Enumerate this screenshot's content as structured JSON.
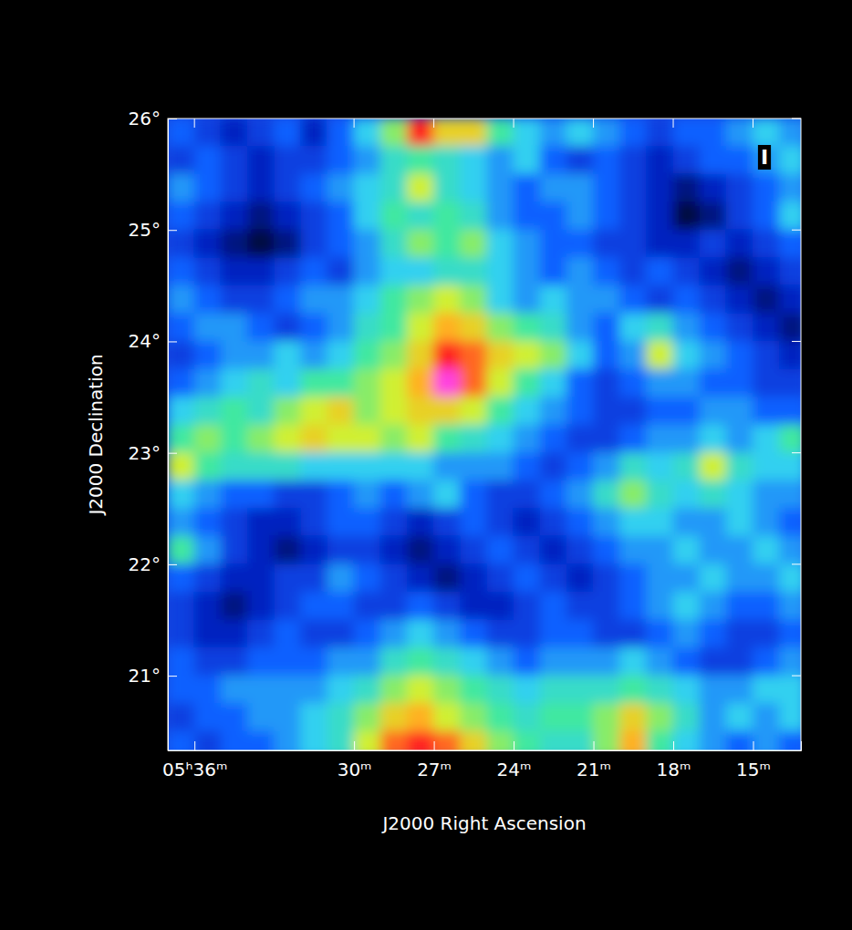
{
  "chart_data": {
    "type": "heatmap",
    "x_label": "J2000 Right Ascension",
    "y_label": "J2000 Declination",
    "annotation": "I",
    "xlim": [
      337.0,
      313.2
    ],
    "ylim": [
      20.33,
      26
    ],
    "xticks": [
      {
        "value": 336,
        "label": "05ʰ36ᵐ"
      },
      {
        "value": 330,
        "label": "30ᵐ"
      },
      {
        "value": 327,
        "label": "27ᵐ"
      },
      {
        "value": 324,
        "label": "24ᵐ"
      },
      {
        "value": 321,
        "label": "21ᵐ"
      },
      {
        "value": 318,
        "label": "18ᵐ"
      },
      {
        "value": 315,
        "label": "15ᵐ"
      }
    ],
    "yticks": [
      {
        "value": 21,
        "label": "21°"
      },
      {
        "value": 22,
        "label": "22°"
      },
      {
        "value": 23,
        "label": "23°"
      },
      {
        "value": 24,
        "label": "24°"
      },
      {
        "value": 25,
        "label": "25°"
      },
      {
        "value": 26,
        "label": "26°"
      }
    ],
    "x": [
      336.5,
      335.5,
      334.5,
      333.5,
      332.5,
      331.5,
      330.5,
      329.5,
      328.5,
      327.5,
      326.5,
      325.5,
      324.5,
      323.5,
      322.5,
      321.5,
      320.5,
      319.5,
      318.5,
      317.5,
      316.5,
      315.5,
      314.5,
      313.5
    ],
    "y": [
      25.875,
      25.625,
      25.375,
      25.125,
      24.875,
      24.625,
      24.375,
      24.125,
      23.875,
      23.625,
      23.375,
      23.125,
      22.875,
      22.625,
      22.375,
      22.125,
      21.875,
      21.625,
      21.375,
      21.125,
      20.875,
      20.625,
      20.375
    ],
    "cells": [
      [
        3.5,
        3,
        2.5,
        3,
        3.5,
        2.5,
        3.5,
        4.5,
        6,
        8.5,
        7,
        7,
        5.5,
        4.5,
        4,
        4.5,
        4,
        3.5,
        3,
        3.5,
        3.5,
        4,
        4.5,
        4
      ],
      [
        3,
        3.5,
        3,
        2.5,
        3,
        3,
        3.5,
        4,
        5,
        5.5,
        5,
        4.5,
        4,
        4.5,
        3.5,
        3,
        3.5,
        3,
        2.5,
        3,
        3.5,
        3.5,
        4,
        4.5
      ],
      [
        4,
        3.5,
        3,
        2.5,
        3,
        3.5,
        4,
        4.5,
        5,
        6.5,
        5,
        4.5,
        4,
        3.5,
        4,
        4,
        3.5,
        3,
        2.5,
        2,
        2.5,
        3,
        3.5,
        4
      ],
      [
        3.5,
        3,
        2.5,
        2,
        2.5,
        3,
        3.5,
        4.5,
        5.5,
        5,
        5.5,
        5,
        4,
        3.5,
        3.5,
        4,
        3.5,
        3,
        2.5,
        1.5,
        2,
        3,
        3.5,
        4.5
      ],
      [
        3,
        2.5,
        2,
        1.5,
        2,
        3,
        3.5,
        4,
        5,
        6,
        5.5,
        6,
        4.5,
        4,
        3.5,
        3.5,
        3,
        3,
        2.5,
        2.5,
        3,
        2.5,
        3,
        3.5
      ],
      [
        3.5,
        3,
        2.5,
        2.5,
        3,
        3.5,
        3,
        4,
        4.5,
        4.5,
        5,
        5,
        4.5,
        4,
        3.5,
        4,
        3.5,
        3,
        3.5,
        3,
        2.5,
        2,
        2.5,
        3
      ],
      [
        4,
        3.5,
        3,
        3,
        3.5,
        4,
        4,
        4.5,
        5.5,
        6,
        6.5,
        6,
        4.5,
        4,
        4.5,
        4,
        4,
        3.5,
        3,
        3.5,
        3,
        2.5,
        2,
        2.5
      ],
      [
        3.5,
        4,
        4,
        3.5,
        3,
        3.5,
        4,
        5,
        5.5,
        6.5,
        7.5,
        7,
        6,
        5.5,
        5,
        4,
        3.5,
        4.5,
        5,
        4,
        3.5,
        3,
        2.5,
        2
      ],
      [
        3,
        3.5,
        4,
        4,
        4.5,
        4,
        4.5,
        5.5,
        6,
        7,
        8.5,
        8,
        7,
        6.5,
        6,
        4.5,
        3.5,
        4,
        6.5,
        4.5,
        4,
        3.5,
        3,
        2.5
      ],
      [
        3.5,
        4,
        4.5,
        5,
        4.5,
        5.5,
        5.5,
        6,
        6.5,
        7.5,
        9.5,
        8,
        6.5,
        5.5,
        4.5,
        3.5,
        3,
        3.5,
        4,
        4,
        3.5,
        3.5,
        3,
        3
      ],
      [
        4.5,
        5,
        5.5,
        5,
        6,
        6.5,
        7,
        6,
        6.5,
        7,
        7,
        6.5,
        5.5,
        4.5,
        4,
        3.5,
        3,
        3,
        3.5,
        3.5,
        4,
        4,
        3.5,
        3.5
      ],
      [
        5.5,
        6,
        5.5,
        6,
        6.5,
        7,
        6.5,
        6.5,
        6,
        6.5,
        5.5,
        5,
        4.5,
        4,
        3.5,
        3,
        3,
        3.5,
        4,
        4,
        4.5,
        4,
        4.5,
        5.5
      ],
      [
        6.5,
        5.5,
        5,
        5,
        5,
        4.5,
        4.5,
        4.5,
        4.5,
        4.5,
        4,
        4,
        4,
        3.5,
        3,
        3.5,
        4,
        5,
        4.5,
        5,
        6.5,
        5,
        4.5,
        4.5
      ],
      [
        4.5,
        4,
        3.5,
        3.5,
        3,
        3,
        3.5,
        4,
        3.5,
        4,
        4.5,
        3.5,
        3,
        3,
        3.5,
        4,
        5,
        6,
        5,
        4.5,
        5,
        4.5,
        4,
        4
      ],
      [
        4,
        3.5,
        3,
        2.5,
        2.5,
        3,
        3.5,
        3.5,
        3,
        2.5,
        3,
        3.5,
        3,
        2.5,
        3,
        3.5,
        4,
        4.5,
        4.5,
        4,
        4,
        4.5,
        4,
        3.5
      ],
      [
        5.5,
        4,
        3,
        2.5,
        2,
        2.5,
        3,
        3,
        2.5,
        2,
        2.5,
        3,
        3.5,
        3,
        2.5,
        3,
        3.5,
        4,
        4,
        4.5,
        4,
        4,
        4.5,
        4
      ],
      [
        3.5,
        3,
        2.5,
        2.5,
        3,
        3,
        4,
        3.5,
        3,
        2.5,
        2,
        2.5,
        3,
        3.5,
        3,
        2.5,
        3,
        3.5,
        4,
        4,
        4.5,
        4,
        4,
        4.5
      ],
      [
        3,
        2.5,
        2,
        2.5,
        3,
        3.5,
        3.5,
        3,
        3,
        3.5,
        3,
        2.5,
        2.5,
        3,
        3.5,
        3,
        3,
        3.5,
        4,
        4.5,
        4,
        3.5,
        3.5,
        4
      ],
      [
        3,
        2.5,
        2.5,
        3,
        3.5,
        3,
        3,
        3.5,
        4,
        4.5,
        4,
        3.5,
        3,
        3,
        3.5,
        3.5,
        3,
        3,
        3.5,
        4,
        3.5,
        3,
        3,
        3.5
      ],
      [
        3.5,
        3,
        3,
        3.5,
        3.5,
        3.5,
        4,
        4,
        5,
        5.5,
        5,
        4.5,
        4,
        3.5,
        4,
        4,
        4,
        4.5,
        4,
        3.5,
        3,
        3,
        3.5,
        4
      ],
      [
        3.5,
        3.5,
        4,
        4,
        4,
        4,
        4.5,
        5,
        6,
        6.5,
        6,
        5.5,
        5,
        4.5,
        5,
        5,
        5,
        5.5,
        5,
        4.5,
        4,
        4,
        4.5,
        4.5
      ],
      [
        3,
        3.5,
        3.5,
        4,
        4,
        4.5,
        5,
        6,
        7,
        7.5,
        6.5,
        6,
        5.5,
        5,
        5.5,
        5.5,
        6,
        7,
        6,
        5,
        4,
        4.5,
        4,
        4.5
      ],
      [
        3.5,
        3,
        3.5,
        3.5,
        4,
        4.5,
        5,
        6.5,
        8,
        8.5,
        8,
        7,
        6,
        5.5,
        5,
        5,
        6,
        7.5,
        5.5,
        4.5,
        4,
        3.5,
        4,
        3.5
      ]
    ]
  }
}
